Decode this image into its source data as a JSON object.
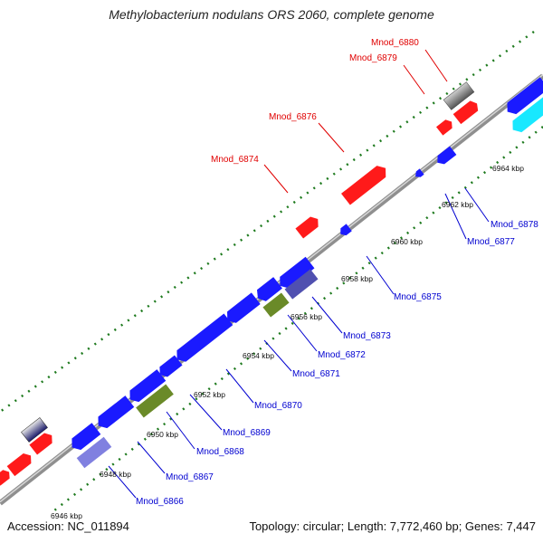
{
  "title": "Methylobacterium nodulans ORS 2060, complete genome",
  "footer": {
    "accession": "Accession: NC_011894",
    "topology": "Topology: circular; Length: 7,772,460 bp; Genes: 7,447"
  },
  "colors": {
    "forward_gene": "#ff1a1a",
    "reverse_gene": "#1a1aff",
    "label_red": "#e00000",
    "label_blue": "#0000d0",
    "dots": "#1e7a1e",
    "backbone": "#8a8a8a"
  },
  "tick_labels": [
    "6946 kbp",
    "6948 kbp",
    "6950 kbp",
    "6952 kbp",
    "6954 kbp",
    "6956 kbp",
    "6958 kbp",
    "6960 kbp",
    "6962 kbp",
    "6964 kbp"
  ],
  "labels_forward": [
    "Mnod_6880",
    "Mnod_6879",
    "Mnod_6876",
    "Mnod_6874"
  ],
  "labels_reverse": [
    "Mnod_6878",
    "Mnod_6877",
    "Mnod_6875",
    "Mnod_6873",
    "Mnod_6872",
    "Mnod_6871",
    "Mnod_6870",
    "Mnod_6869",
    "Mnod_6868",
    "Mnod_6867",
    "Mnod_6866"
  ]
}
